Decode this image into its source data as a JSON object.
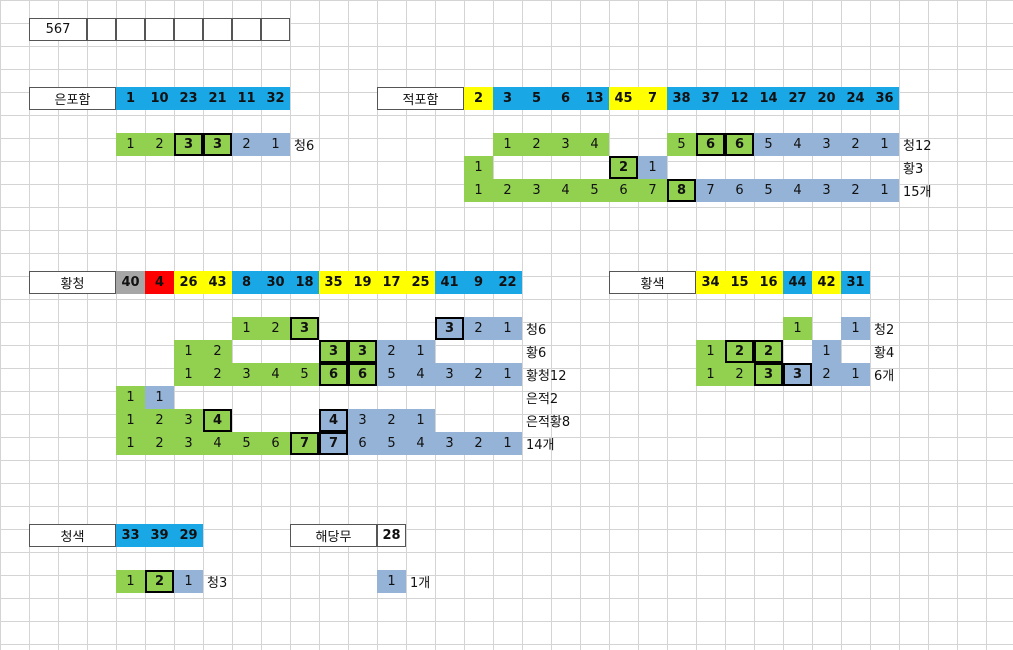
{
  "colors": {
    "blue": "#1aa7e6",
    "yellow": "#ffff00",
    "gray": "#a6a6a6",
    "red": "#ff0000",
    "orange": "#ffc000",
    "green": "#92d050",
    "light_blue": "#95b3d7"
  },
  "top": {
    "value": "567"
  },
  "eunpoham": {
    "label": "은포함",
    "nums": [
      "1",
      "10",
      "23",
      "21",
      "11",
      "32"
    ],
    "count_row": [
      "1",
      "2",
      "3",
      "3",
      "2",
      "1"
    ],
    "note": "청6"
  },
  "jeokpoham": {
    "label": "적포함",
    "nums": [
      "2",
      "3",
      "5",
      "6",
      "13",
      "45",
      "7",
      "38",
      "37",
      "12",
      "14",
      "27",
      "20",
      "24",
      "36"
    ],
    "row1": {
      "left": [
        "1",
        "2",
        "3",
        "4"
      ],
      "right": [
        "5",
        "6",
        "6",
        "5",
        "4",
        "3",
        "2",
        "1"
      ],
      "note": "청12"
    },
    "row2": {
      "first": "1",
      "mid": "2",
      "after": "1",
      "note": "황3"
    },
    "row3": {
      "left": [
        "1",
        "2",
        "3",
        "4",
        "5",
        "6",
        "7",
        "8"
      ],
      "right": [
        "7",
        "6",
        "5",
        "4",
        "3",
        "2",
        "1"
      ],
      "note": "15개"
    }
  },
  "hwangcheong": {
    "label": "황청",
    "nums": [
      "40",
      "4",
      "26",
      "43",
      "8",
      "30",
      "18",
      "35",
      "19",
      "17",
      "25",
      "41",
      "9",
      "22"
    ],
    "row1": {
      "left": [
        "1",
        "2",
        "3"
      ],
      "right": [
        "3",
        "2",
        "1"
      ],
      "note": "청6"
    },
    "row2": {
      "left": [
        "1",
        "2"
      ],
      "right": [
        "3",
        "3",
        "2",
        "1"
      ],
      "note": "황6"
    },
    "row3": {
      "left": [
        "1",
        "2",
        "3",
        "4",
        "5",
        "6"
      ],
      "right": [
        "6",
        "5",
        "4",
        "3",
        "2",
        "1"
      ],
      "note": "황청12"
    },
    "row4": {
      "cells": [
        "1",
        "1"
      ],
      "note": "은적2"
    },
    "row5": {
      "left": [
        "1",
        "2",
        "3",
        "4"
      ],
      "right": [
        "4",
        "3",
        "2",
        "1"
      ],
      "note": "은적황8"
    },
    "row6": {
      "left": [
        "1",
        "2",
        "3",
        "4",
        "5",
        "6",
        "7"
      ],
      "right": [
        "7",
        "6",
        "5",
        "4",
        "3",
        "2",
        "1"
      ],
      "note": "14개"
    }
  },
  "hwangsaek": {
    "label": "황색",
    "nums": [
      "34",
      "15",
      "16",
      "44",
      "42",
      "31"
    ],
    "row1": {
      "green": "1",
      "blue": "1",
      "note": "청2"
    },
    "row2": {
      "green": [
        "1",
        "2",
        "2"
      ],
      "blue": "1",
      "note": "황4"
    },
    "row3": {
      "green": [
        "1",
        "2",
        "3"
      ],
      "blue": [
        "3",
        "2",
        "1"
      ],
      "note": "6개"
    }
  },
  "cheongsaek": {
    "label": "청색",
    "nums": [
      "33",
      "39",
      "29"
    ],
    "row": [
      "1",
      "2",
      "1"
    ],
    "note": "청3"
  },
  "haedangmu": {
    "label": "해당무",
    "nums": [
      "28"
    ],
    "row": [
      "1"
    ],
    "note": "1개"
  }
}
